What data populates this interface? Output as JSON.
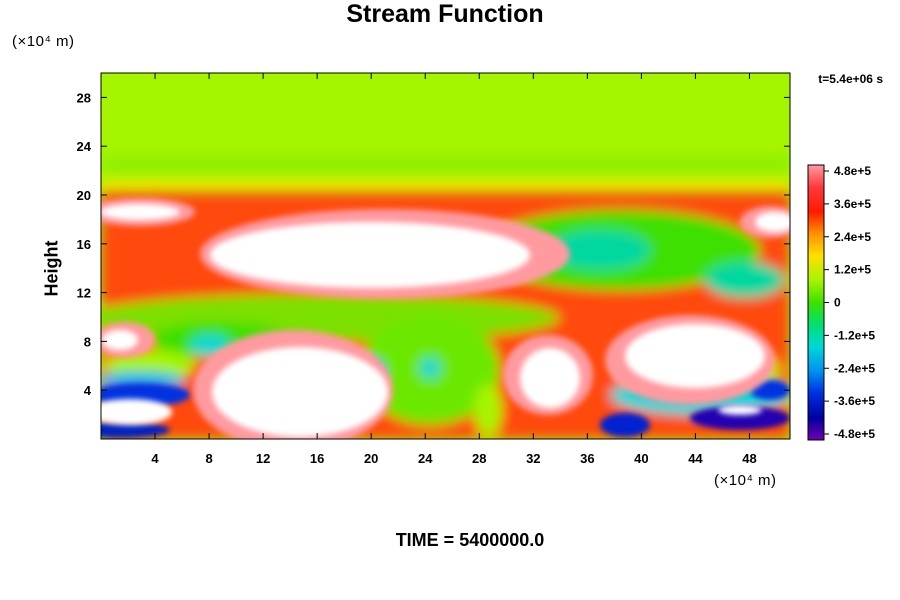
{
  "chart_data": {
    "type": "heatmap",
    "title": "Stream Function",
    "ylabel": "Height",
    "x_unit": "(×10⁴ m)",
    "y_unit": "(×10⁴ m)",
    "time_label": "t=5.4e+06 s",
    "footer": "TIME = 5400000.0",
    "xlim": [
      0,
      51
    ],
    "ylim": [
      0,
      30
    ],
    "x_ticks": [
      "4",
      "8",
      "12",
      "16",
      "20",
      "24",
      "28",
      "32",
      "36",
      "40",
      "44",
      "48"
    ],
    "y_ticks": [
      "4",
      "8",
      "12",
      "16",
      "20",
      "24",
      "28"
    ],
    "colorbar": {
      "range": [
        -480000,
        480000
      ],
      "ticks": [
        "4.8e+5",
        "3.6e+5",
        "2.4e+5",
        "1.2e+5",
        "0",
        "-1.2e+5",
        "-2.4e+5",
        "-3.6e+5",
        "-4.8e+5"
      ]
    },
    "colors": {
      "upper_field": "#a6f500",
      "saturated": "#ffffff",
      "background": "#ffffff"
    }
  }
}
